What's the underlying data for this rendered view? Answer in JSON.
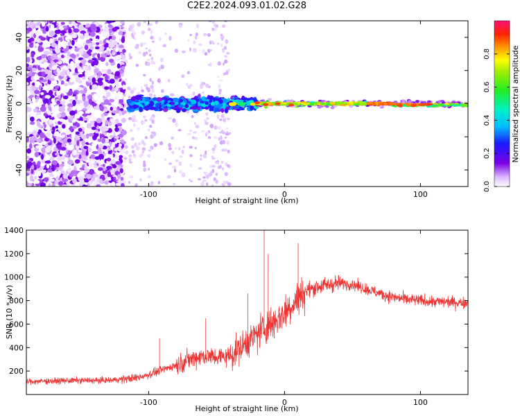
{
  "figure_title": "C2E2.2024.093.01.02.G28",
  "chart_data": [
    {
      "type": "heatmap",
      "title": "",
      "xlabel": "Height of straight line (km)",
      "ylabel": "Frequency (Hz)",
      "xlim": [
        -190,
        135
      ],
      "ylim": [
        -50,
        50
      ],
      "x_ticks": [
        -100,
        0,
        100
      ],
      "y_ticks": [
        -40,
        -20,
        0,
        20,
        40
      ],
      "grid": false,
      "colorbar": {
        "label": "Normalized spectral amplitude",
        "range": [
          0,
          1
        ],
        "ticks": [
          "0.0",
          "0.2",
          "0.4",
          "0.6",
          "0.8"
        ],
        "colormap": "rainbow (purple → blue → cyan → green → yellow → orange → red → magenta)"
      },
      "regions": [
        {
          "x_range": [
            -190,
            -118
          ],
          "y_range": [
            -50,
            50
          ],
          "amplitude": [
            0.0,
            0.15
          ],
          "description": "dense low-amplitude noise"
        },
        {
          "x_range": [
            -118,
            -40
          ],
          "y_range": [
            -50,
            50
          ],
          "amplitude": [
            0.0,
            0.05
          ],
          "description": "sparse faint noise columns"
        },
        {
          "x_range": [
            -115,
            -20
          ],
          "y_range": [
            -8,
            8
          ],
          "amplitude": [
            0.1,
            0.4
          ],
          "description": "noisy signal band centered near 0 Hz"
        },
        {
          "x_range": [
            -20,
            135
          ],
          "y_range": [
            -3,
            3
          ],
          "amplitude": [
            0.3,
            0.9
          ],
          "description": "narrow strong signal line near 0 Hz"
        }
      ]
    },
    {
      "type": "line",
      "title": "",
      "xlabel": "Height of straight line (km)",
      "ylabel": "SNR (10 * v/v)",
      "xlim": [
        -190,
        135
      ],
      "ylim": [
        0,
        1400
      ],
      "x_ticks": [
        -100,
        0,
        100
      ],
      "y_ticks": [
        200,
        400,
        600,
        800,
        1000,
        1200,
        1400
      ],
      "grid": false,
      "color": "#ee3333",
      "series": [
        {
          "x": [
            -190,
            -170,
            -150,
            -130,
            -110,
            -100,
            -90,
            -80,
            -70,
            -60,
            -50,
            -40,
            -30,
            -20,
            -15,
            -10,
            -5,
            0,
            5,
            10,
            15,
            20,
            25,
            30,
            40,
            50,
            60,
            70,
            80,
            90,
            100,
            110,
            120,
            135
          ],
          "y": [
            110,
            115,
            120,
            120,
            140,
            170,
            210,
            250,
            300,
            330,
            320,
            330,
            420,
            520,
            560,
            600,
            650,
            700,
            760,
            820,
            880,
            900,
            920,
            930,
            950,
            940,
            900,
            860,
            830,
            810,
            800,
            790,
            790,
            780
          ]
        }
      ],
      "peaks": [
        {
          "x": -92,
          "y": 480
        },
        {
          "x": -58,
          "y": 650
        },
        {
          "x": -27,
          "y": 860
        },
        {
          "x": -15,
          "y": 1400
        },
        {
          "x": -12,
          "y": 1200
        },
        {
          "x": 10,
          "y": 1290
        }
      ]
    }
  ]
}
